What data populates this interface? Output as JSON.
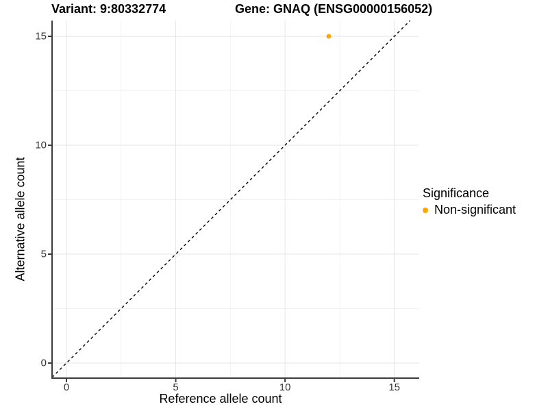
{
  "title": {
    "variant": "Variant: 9:80332774",
    "gene": "Gene: GNAQ (ENSG00000156052)"
  },
  "axes": {
    "x": {
      "label": "Reference allele count"
    },
    "y": {
      "label": "Alternative allele count"
    }
  },
  "legend": {
    "title": "Significance",
    "entries": [
      {
        "label": "Non-significant",
        "color": "#FFA500",
        "marker": "circle-icon"
      }
    ]
  },
  "chart_data": {
    "type": "scatter",
    "title": "Variant: 9:80332774        Gene: GNAQ (ENSG00000156052)",
    "xlabel": "Reference allele count",
    "ylabel": "Alternative allele count",
    "xlim": [
      -0.66,
      16.14
    ],
    "ylim": [
      -0.69,
      15.72
    ],
    "x_major_ticks": [
      0,
      5,
      10,
      15
    ],
    "y_major_ticks": [
      0,
      5,
      10,
      15
    ],
    "x_minor_ticks": [
      2.5,
      7.5,
      12.5
    ],
    "y_minor_ticks": [
      2.5,
      7.5,
      12.5
    ],
    "grid": "major+minor",
    "legend_position": "right",
    "series": [
      {
        "name": "Non-significant",
        "color": "#FFA500",
        "points": [
          {
            "x": 12,
            "y": 15
          }
        ]
      }
    ],
    "reference_line": {
      "slope": 1,
      "intercept": 0,
      "style": "dashed",
      "color": "#000000"
    }
  },
  "colors": {
    "background": "#FFFFFF",
    "grid_major": "#E6E6E6",
    "grid_minor": "#F2F2F2",
    "axis_line": "#3C3C3C",
    "tick_label": "#333333",
    "point": "#FFA500"
  }
}
